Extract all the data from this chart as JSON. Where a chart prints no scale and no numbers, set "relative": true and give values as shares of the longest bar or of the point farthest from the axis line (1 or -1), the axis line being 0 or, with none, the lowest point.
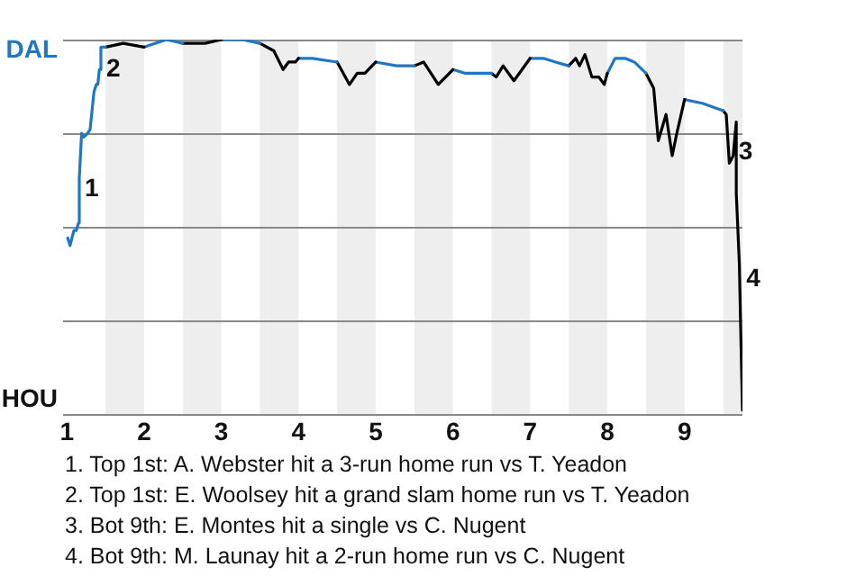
{
  "chart_data": {
    "type": "line",
    "relative": true,
    "xlim": [
      0.95,
      9.75
    ],
    "xticks": [
      1,
      2,
      3,
      4,
      5,
      6,
      7,
      8,
      9
    ],
    "grid": "y",
    "marker": "none",
    "line_style": "solid",
    "legend": false,
    "bands": [
      {
        "axis": "x",
        "from": 1.5,
        "to": 2,
        "color": "#eeeeee"
      },
      {
        "axis": "x",
        "from": 2.5,
        "to": 3,
        "color": "#eeeeee"
      },
      {
        "axis": "x",
        "from": 3.5,
        "to": 4,
        "color": "#eeeeee"
      },
      {
        "axis": "x",
        "from": 4.5,
        "to": 5,
        "color": "#eeeeee"
      },
      {
        "axis": "x",
        "from": 5.5,
        "to": 6,
        "color": "#eeeeee"
      },
      {
        "axis": "x",
        "from": 6.5,
        "to": 7,
        "color": "#eeeeee"
      },
      {
        "axis": "x",
        "from": 7.5,
        "to": 8,
        "color": "#eeeeee"
      },
      {
        "axis": "x",
        "from": 8.5,
        "to": 9,
        "color": "#eeeeee"
      },
      {
        "axis": "x",
        "from": 9.5,
        "to": 9.75,
        "color": "#eeeeee"
      }
    ],
    "series": [
      {
        "color": "#1f77c4",
        "x": [
          1.01,
          1.04,
          1.09,
          1.12,
          1.15,
          1.16,
          1.19,
          1.22,
          1.27,
          1.3,
          1.33,
          1.35,
          1.38,
          1.4,
          1.42,
          1.44,
          1.47,
          1.5
        ],
        "values": [
          0.47,
          0.45,
          0.49,
          0.49,
          0.51,
          0.63,
          0.75,
          0.74,
          0.75,
          0.76,
          0.82,
          0.86,
          0.88,
          0.88,
          0.92,
          0.98,
          0.98,
          0.98
        ]
      },
      {
        "color": "#000000",
        "x": [
          1.5,
          1.73,
          2
        ],
        "values": [
          0.98,
          0.99,
          0.98
        ]
      },
      {
        "color": "#1f77c4",
        "x": [
          2,
          2.29,
          2.5
        ],
        "values": [
          0.98,
          1,
          0.99
        ]
      },
      {
        "color": "#000000",
        "x": [
          2.5,
          2.79,
          3
        ],
        "values": [
          0.99,
          0.99,
          1
        ]
      },
      {
        "color": "#1f77c4",
        "x": [
          3,
          3.27,
          3.5
        ],
        "values": [
          1,
          1,
          0.99
        ]
      },
      {
        "color": "#000000",
        "x": [
          3.5,
          3.68,
          3.8,
          3.87,
          3.96,
          4
        ],
        "values": [
          0.99,
          0.97,
          0.92,
          0.94,
          0.94,
          0.95
        ]
      },
      {
        "color": "#1f77c4",
        "x": [
          4,
          4.18,
          4.5
        ],
        "values": [
          0.95,
          0.95,
          0.94
        ]
      },
      {
        "color": "#000000",
        "x": [
          4.5,
          4.66,
          4.76,
          4.86,
          5
        ],
        "values": [
          0.94,
          0.88,
          0.91,
          0.91,
          0.94
        ]
      },
      {
        "color": "#1f77c4",
        "x": [
          5,
          5.27,
          5.5
        ],
        "values": [
          0.94,
          0.93,
          0.93
        ]
      },
      {
        "color": "#000000",
        "x": [
          5.5,
          5.62,
          5.81,
          6
        ],
        "values": [
          0.93,
          0.94,
          0.88,
          0.92
        ]
      },
      {
        "color": "#1f77c4",
        "x": [
          6,
          6.16,
          6.32,
          6.5
        ],
        "values": [
          0.92,
          0.91,
          0.91,
          0.91
        ]
      },
      {
        "color": "#000000",
        "x": [
          6.5,
          6.56,
          6.65,
          6.79,
          7
        ],
        "values": [
          0.91,
          0.9,
          0.93,
          0.89,
          0.95
        ]
      },
      {
        "color": "#1f77c4",
        "x": [
          7,
          7.17,
          7.33,
          7.5
        ],
        "values": [
          0.95,
          0.95,
          0.94,
          0.93
        ]
      },
      {
        "color": "#000000",
        "x": [
          7.5,
          7.59,
          7.64,
          7.71,
          7.8,
          7.89,
          7.96,
          8
        ],
        "values": [
          0.93,
          0.95,
          0.93,
          0.96,
          0.9,
          0.9,
          0.88,
          0.91
        ]
      },
      {
        "color": "#1f77c4",
        "x": [
          8,
          8.1,
          8.23,
          8.35,
          8.5
        ],
        "values": [
          0.91,
          0.95,
          0.95,
          0.94,
          0.91
        ]
      },
      {
        "color": "#000000",
        "x": [
          8.5,
          8.6,
          8.66,
          8.76,
          8.84,
          8.9,
          9
        ],
        "values": [
          0.91,
          0.87,
          0.73,
          0.8,
          0.69,
          0.75,
          0.84
        ]
      },
      {
        "color": "#1f77c4",
        "x": [
          9,
          9.23,
          9.5
        ],
        "values": [
          0.84,
          0.83,
          0.81
        ]
      },
      {
        "color": "#000000",
        "x": [
          9.5,
          9.54,
          9.58,
          9.63,
          9.67,
          9.67,
          9.71,
          9.73,
          9.75
        ],
        "values": [
          0.81,
          0.8,
          0.67,
          0.69,
          0.78,
          0.59,
          0.4,
          0.2,
          0.01
        ]
      }
    ],
    "annotations": [
      "DAL",
      "HOU",
      {
        "text": "1",
        "x": 1.16,
        "y": 0.6
      },
      {
        "text": "2",
        "x": 1.44,
        "y": 0.92
      },
      {
        "text": "3",
        "x": 9.63,
        "y": 0.7
      },
      {
        "text": "4",
        "x": 9.73,
        "y": 0.36
      },
      "1. Top 1st: A. Webster hit a 3-run home run vs T. Yeadon",
      "2. Top 1st: E. Woolsey hit a grand slam home run vs T. Yeadon",
      "3. Bot 9th: E. Montes hit a single vs C. Nugent",
      "4. Bot 9th: M. Launay hit a 2-run home run vs C. Nugent"
    ]
  }
}
